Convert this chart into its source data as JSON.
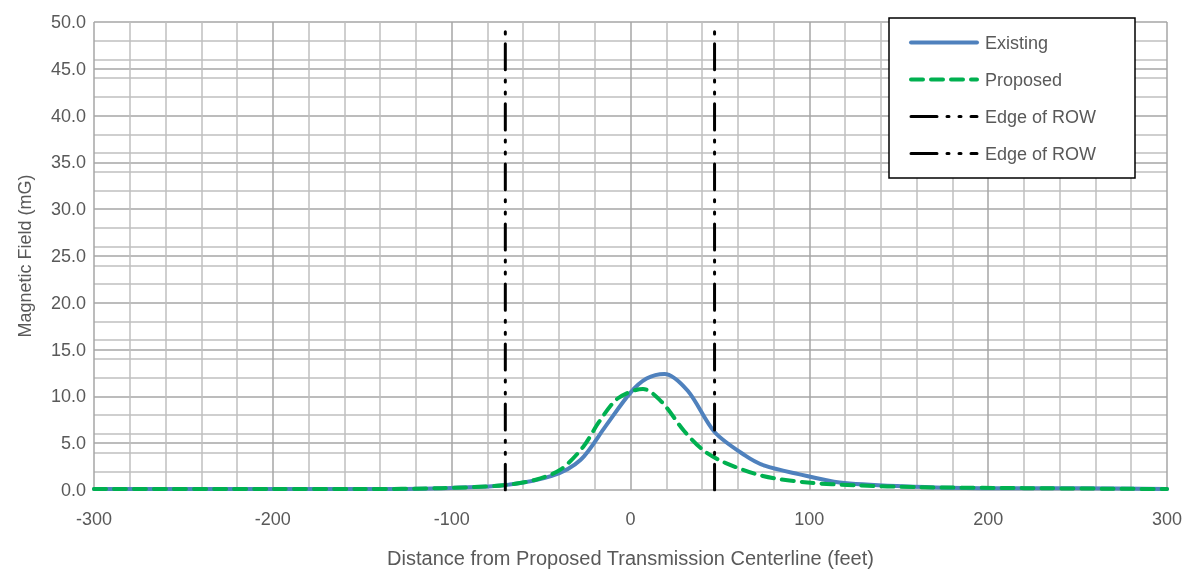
{
  "chart_data": {
    "type": "line",
    "xlabel": "Distance from Proposed Transmission Centerline (feet)",
    "ylabel": "Magnetic Field (mG)",
    "xlim": [
      -300,
      300
    ],
    "xticks": [
      -300,
      -200,
      -100,
      0,
      100,
      200,
      300
    ],
    "ylim": [
      0,
      50
    ],
    "yticks": [
      {
        "value": 0,
        "label": "0.0"
      },
      {
        "value": 5,
        "label": "5.0"
      },
      {
        "value": 10,
        "label": "10.0"
      },
      {
        "value": 15,
        "label": "15.0"
      },
      {
        "value": 20,
        "label": "20.0"
      },
      {
        "value": 25,
        "label": "25.0"
      },
      {
        "value": 30,
        "label": "30.0"
      },
      {
        "value": 35,
        "label": "35.0"
      },
      {
        "value": 40,
        "label": "40.0"
      },
      {
        "value": 45,
        "label": "45.0"
      },
      {
        "value": 50,
        "label": "50.0"
      }
    ],
    "grid": true,
    "legend": "top right",
    "marker": "none",
    "series": [
      {
        "name": "Existing",
        "color": "#4f81bd",
        "line_style": "solid",
        "x": [
          -300,
          -200,
          -150,
          -106,
          -71,
          -44,
          -28,
          -14,
          0,
          9,
          19,
          32,
          47,
          64,
          75,
          94,
          117,
          152,
          197,
          250,
          300
        ],
        "values": [
          0.1,
          0.1,
          0.1,
          0.2,
          0.5,
          1.5,
          3.2,
          6.8,
          10.4,
          11.9,
          12.4,
          10.6,
          6.2,
          3.7,
          2.6,
          1.7,
          0.8,
          0.4,
          0.2,
          0.2,
          0.1
        ]
      },
      {
        "name": "Proposed",
        "color": "#00b050",
        "line_style": "dashed",
        "x": [
          -300,
          -200,
          -150,
          -106,
          -71,
          -53,
          -39,
          -26.5,
          -17.5,
          -7,
          7,
          17.5,
          30,
          41,
          53,
          74,
          99,
          126,
          161,
          220,
          300
        ],
        "values": [
          0.1,
          0.1,
          0.1,
          0.2,
          0.5,
          1.1,
          2.2,
          4.6,
          7.3,
          9.8,
          10.8,
          9.4,
          6.3,
          4.2,
          2.9,
          1.5,
          0.8,
          0.5,
          0.3,
          0.2,
          0.1
        ]
      },
      {
        "name": "Edge of ROW",
        "color": "#000000",
        "line_style": "dashdot",
        "x": [
          -70,
          -70
        ],
        "values": [
          0,
          50
        ]
      },
      {
        "name": "Edge of ROW",
        "color": "#000000",
        "line_style": "dashdot",
        "x": [
          47,
          47
        ],
        "values": [
          0,
          50
        ]
      }
    ]
  }
}
